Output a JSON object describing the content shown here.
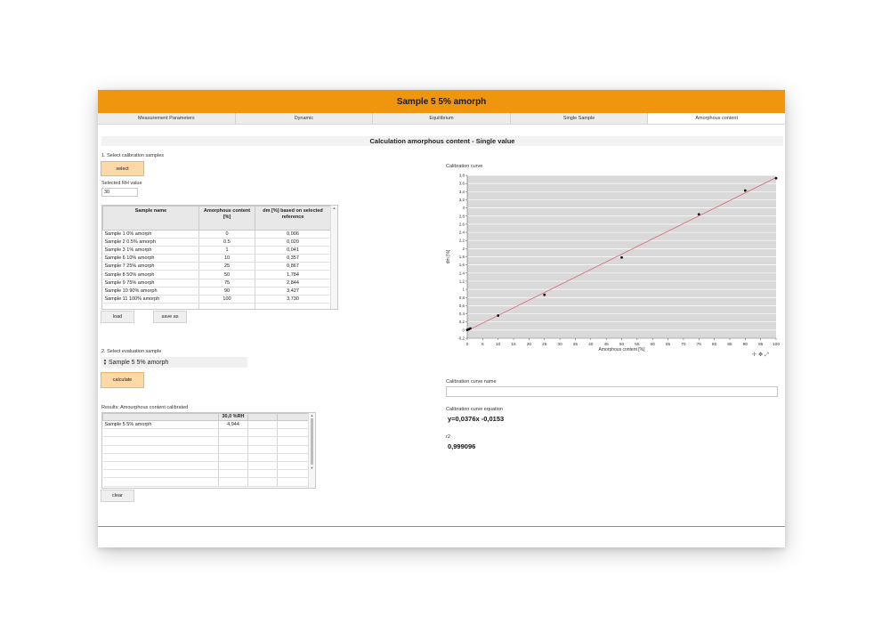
{
  "window": {
    "title": "Sample 5 5% amorph"
  },
  "tabs": [
    {
      "label": "Measurement Parameters"
    },
    {
      "label": "Dynamic"
    },
    {
      "label": "Equilibrium"
    },
    {
      "label": "Single Sample"
    },
    {
      "label": "Amorphous content",
      "active": true
    }
  ],
  "section_title": "Calculation amorphous content - Single value",
  "calibration": {
    "step_label": "1. Select calibration samples",
    "select_button": "select",
    "rh_label": "Selected RH value",
    "rh_value": "30",
    "columns": [
      "Sample name",
      "Amorphous content [%]",
      "dm [%] based on selected reference"
    ],
    "rows": [
      [
        "Sample 1 0% amorph",
        "0",
        "0,006"
      ],
      [
        "Sample 2 0.5% amorph",
        "0.5",
        "0,020"
      ],
      [
        "Sample 3 1% amorph",
        "1",
        "0,041"
      ],
      [
        "Sample 6 10% amorph",
        "10",
        "0,357"
      ],
      [
        "Sample 7 25% amorph",
        "25",
        "0,867"
      ],
      [
        "Sample 8 50% amorph",
        "50",
        "1,784"
      ],
      [
        "Sample 9 75% amorph",
        "75",
        "2,844"
      ],
      [
        "Sample 10 90% amorph",
        "90",
        "3,427"
      ],
      [
        "Sample 11 100% amorph",
        "100",
        "3,730"
      ]
    ],
    "load_button": "load",
    "save_button": "save as"
  },
  "evaluation": {
    "step_label": "2. Select evaluation sample",
    "selected_sample": "Sample 5 5% amorph",
    "calculate_button": "calculate"
  },
  "results": {
    "label": "Results: Amourphous content calibrated",
    "columns": [
      "",
      "30,0 %RH",
      "",
      ""
    ],
    "rows": [
      [
        "Sample 5 5% amorph",
        "4,944",
        "",
        ""
      ]
    ],
    "clear_button": "clear"
  },
  "chart_panel": {
    "title": "Calibration curve",
    "toolbar_icons": [
      "zoom-icon",
      "pan-icon",
      "fit-icon"
    ]
  },
  "curve_name": {
    "label": "Calibration curve name",
    "value": ""
  },
  "equation": {
    "label": "Calibration curve equation",
    "value": "y=0,0376x -0,0153"
  },
  "r2": {
    "label": "r2",
    "value": "0,999096"
  },
  "chart_data": {
    "type": "scatter",
    "title": "",
    "xlabel": "Amorphous content [%]",
    "ylabel": "dm [%]",
    "xlim": [
      0,
      100
    ],
    "ylim": [
      -0.2,
      3.8
    ],
    "x_ticks": [
      "0",
      "5",
      "10",
      "15",
      "20",
      "25",
      "30",
      "35",
      "40",
      "45",
      "50",
      "55",
      "60",
      "65",
      "70",
      "75",
      "80",
      "85",
      "90",
      "95",
      "100"
    ],
    "y_ticks": [
      "-0,2",
      "0",
      "0,2",
      "0,4",
      "0,6",
      "0,8",
      "1",
      "1,2",
      "1,4",
      "1,6",
      "1,8",
      "2",
      "2,2",
      "2,4",
      "2,6",
      "2,8",
      "3",
      "3,2",
      "3,4",
      "3,6",
      "3,8"
    ],
    "grid": true,
    "series": [
      {
        "x": [
          0,
          0.5,
          1,
          10,
          25,
          50,
          75,
          90,
          100
        ],
        "y": [
          0.006,
          0.02,
          0.041,
          0.357,
          0.867,
          1.784,
          2.844,
          3.427,
          3.73
        ]
      }
    ],
    "fit_line": {
      "slope": 0.0376,
      "intercept": -0.0153,
      "color": "#e06070"
    },
    "colors": {
      "plot_bg": "#d9d9d9",
      "point": "#111111"
    }
  }
}
